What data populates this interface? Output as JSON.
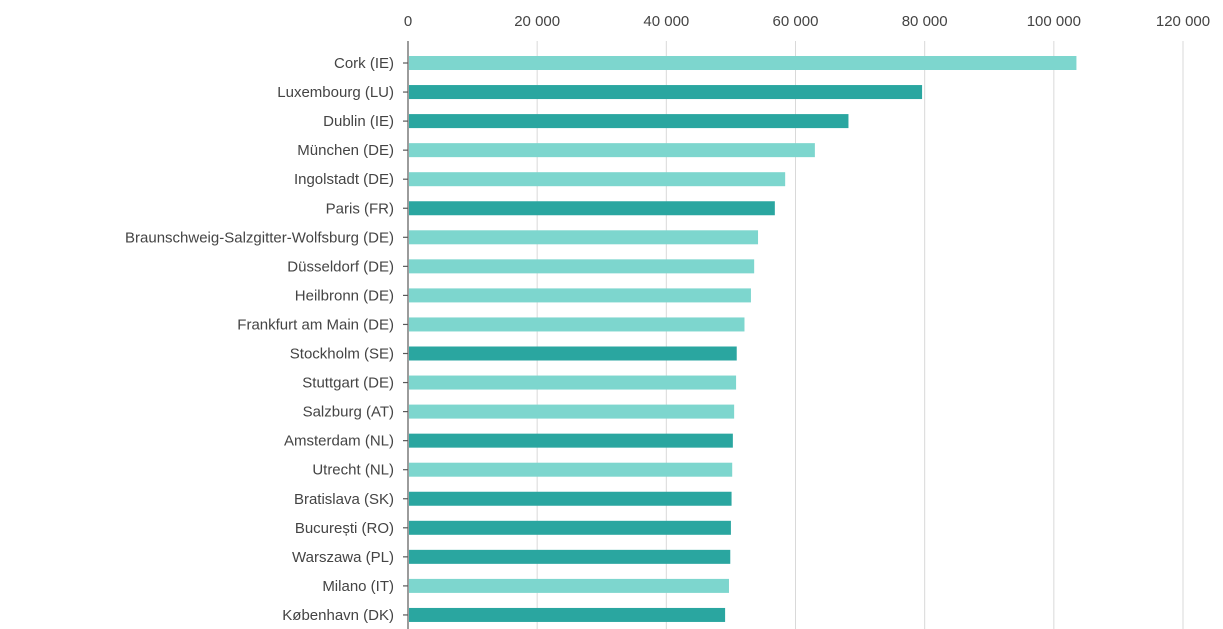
{
  "chart_data": {
    "type": "bar",
    "orientation": "horizontal",
    "title": "",
    "xlabel": "",
    "ylabel": "",
    "xlim": [
      0,
      120000
    ],
    "ticks": [
      0,
      20000,
      40000,
      60000,
      80000,
      100000,
      120000
    ],
    "tick_labels": [
      "0",
      "20 000",
      "40 000",
      "60 000",
      "80 000",
      "100 000",
      "120 000"
    ],
    "axis_position": "top",
    "grid": true,
    "legend": "none",
    "colors": {
      "light": "#7dd6ce",
      "dark": "#2aa6a0"
    },
    "categories": [
      "Cork (IE)",
      "Luxembourg (LU)",
      "Dublin (IE)",
      "München (DE)",
      "Ingolstadt (DE)",
      "Paris (FR)",
      "Braunschweig-Salzgitter-Wolfsburg (DE)",
      "Düsseldorf (DE)",
      "Heilbronn (DE)",
      "Frankfurt am Main (DE)",
      "Stockholm (SE)",
      "Stuttgart (DE)",
      "Salzburg (AT)",
      "Amsterdam (NL)",
      "Utrecht (NL)",
      "Bratislava (SK)",
      "București (RO)",
      "Warszawa (PL)",
      "Milano (IT)",
      "København (DK)"
    ],
    "values": [
      103500,
      79600,
      68200,
      63000,
      58400,
      56800,
      54200,
      53600,
      53100,
      52100,
      50900,
      50800,
      50500,
      50300,
      50200,
      50100,
      50000,
      49900,
      49700,
      49100
    ],
    "bar_color_key": [
      "light",
      "dark",
      "dark",
      "light",
      "light",
      "dark",
      "light",
      "light",
      "light",
      "light",
      "dark",
      "light",
      "light",
      "dark",
      "light",
      "dark",
      "dark",
      "dark",
      "light",
      "dark"
    ]
  }
}
